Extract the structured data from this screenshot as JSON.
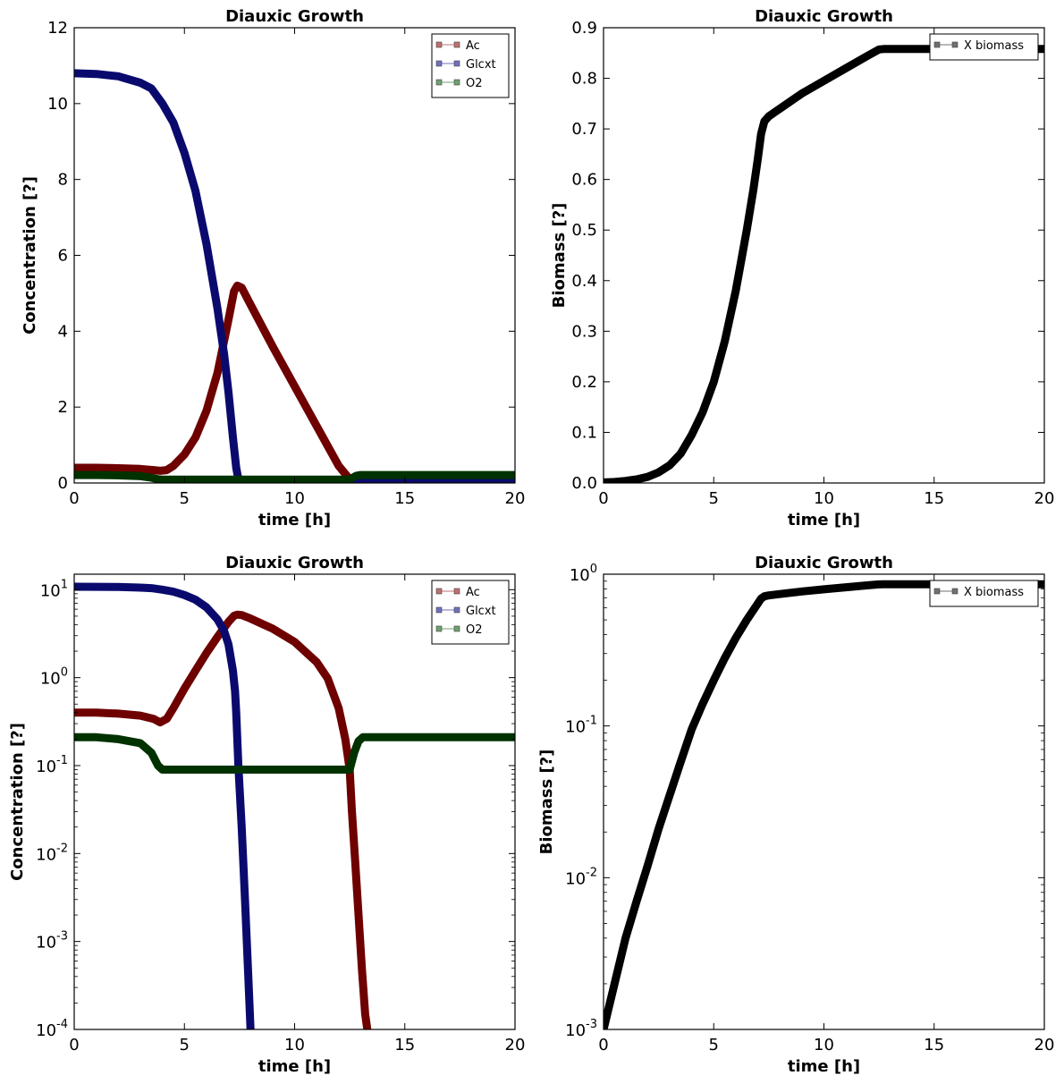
{
  "figure": {
    "panels": [
      {
        "id": "top-left-linear-concentration",
        "title": "Diauxic Growth",
        "xlabel": "time [h]",
        "ylabel": "Concentration [?]",
        "x_ticks": [
          "0",
          "5",
          "10",
          "15",
          "20"
        ],
        "y_ticks": [
          "0",
          "2",
          "4",
          "6",
          "8",
          "10",
          "12"
        ],
        "legend": [
          "Ac",
          "Glcxt",
          "O2"
        ]
      },
      {
        "id": "top-right-linear-biomass",
        "title": "Diauxic Growth",
        "xlabel": "time [h]",
        "ylabel": "Biomass [?]",
        "x_ticks": [
          "0",
          "5",
          "10",
          "15",
          "20"
        ],
        "y_ticks": [
          "0.0",
          "0.1",
          "0.2",
          "0.3",
          "0.4",
          "0.5",
          "0.6",
          "0.7",
          "0.8",
          "0.9"
        ],
        "legend": [
          "X biomass"
        ]
      },
      {
        "id": "bottom-left-log-concentration",
        "title": "Diauxic Growth",
        "xlabel": "time [h]",
        "ylabel": "Concentration [?]",
        "x_ticks": [
          "0",
          "5",
          "10",
          "15",
          "20"
        ],
        "y_tick_base": "10",
        "y_tick_exponents": [
          "-4",
          "-3",
          "-2",
          "-1",
          "0",
          "1"
        ],
        "legend": [
          "Ac",
          "Glcxt",
          "O2"
        ]
      },
      {
        "id": "bottom-right-log-biomass",
        "title": "Diauxic Growth",
        "xlabel": "time [h]",
        "ylabel": "Biomass [?]",
        "x_ticks": [
          "0",
          "5",
          "10",
          "15",
          "20"
        ],
        "y_tick_base": "10",
        "y_tick_exponents": [
          "-3",
          "-2",
          "-1",
          "0"
        ],
        "legend": [
          "X biomass"
        ]
      }
    ]
  },
  "colors": {
    "Ac": "#6e0000",
    "Glcxt": "#0a0a6e",
    "O2": "#003200",
    "X biomass": "#000000",
    "Ac_legend": "#c07070",
    "Glcxt_legend": "#7070c0",
    "O2_legend": "#70a070",
    "X_biomass_legend": "#707070"
  },
  "chart_data": [
    {
      "type": "line",
      "title": "Diauxic Growth",
      "xlabel": "time [h]",
      "ylabel": "Concentration [?]",
      "xlim": [
        0,
        20
      ],
      "ylim": [
        0,
        12
      ],
      "yscale": "linear",
      "grid": false,
      "legend_position": "top-right",
      "series": [
        {
          "name": "Ac",
          "x": [
            0,
            1,
            2,
            3,
            3.6,
            3.9,
            4.2,
            4.5,
            5,
            5.5,
            6,
            6.5,
            7,
            7.25,
            7.4,
            7.6,
            8,
            9,
            10,
            11,
            12,
            12.5,
            12.7,
            13,
            14,
            16,
            18,
            20
          ],
          "y": [
            0.4,
            0.4,
            0.39,
            0.37,
            0.34,
            0.32,
            0.34,
            0.45,
            0.75,
            1.2,
            1.9,
            2.9,
            4.3,
            5.05,
            5.2,
            5.15,
            4.7,
            3.6,
            2.55,
            1.5,
            0.45,
            0.1,
            0.0,
            0.0,
            0.0,
            0.0,
            0.0,
            0.0
          ]
        },
        {
          "name": "Glcxt",
          "x": [
            0,
            1,
            2,
            3,
            3.5,
            4,
            4.5,
            5,
            5.5,
            6,
            6.5,
            6.8,
            7,
            7.2,
            7.35,
            7.45,
            7.6,
            8,
            10,
            15,
            20
          ],
          "y": [
            10.8,
            10.78,
            10.72,
            10.55,
            10.4,
            10.0,
            9.5,
            8.7,
            7.7,
            6.3,
            4.6,
            3.4,
            2.4,
            1.2,
            0.4,
            0.1,
            0.0,
            0.0,
            0.0,
            0.0,
            0.0
          ]
        },
        {
          "name": "O2",
          "x": [
            0,
            1,
            2,
            3,
            3.5,
            3.8,
            4,
            5,
            8,
            10,
            12,
            12.5,
            12.8,
            13,
            14,
            16,
            18,
            20
          ],
          "y": [
            0.21,
            0.21,
            0.2,
            0.18,
            0.14,
            0.1,
            0.09,
            0.09,
            0.09,
            0.09,
            0.09,
            0.09,
            0.19,
            0.21,
            0.21,
            0.21,
            0.21,
            0.21
          ]
        }
      ]
    },
    {
      "type": "line",
      "title": "Diauxic Growth",
      "xlabel": "time [h]",
      "ylabel": "Biomass [?]",
      "xlim": [
        0,
        20
      ],
      "ylim": [
        0,
        0.9
      ],
      "yscale": "linear",
      "grid": false,
      "legend_position": "top-right",
      "series": [
        {
          "name": "X biomass",
          "x": [
            0,
            0.5,
            1,
            1.5,
            2,
            2.5,
            3,
            3.5,
            4,
            4.5,
            5,
            5.5,
            6,
            6.5,
            6.8,
            7,
            7.15,
            7.3,
            7.5,
            8,
            9,
            10,
            11,
            12,
            12.5,
            12.7,
            14,
            16,
            18,
            20
          ],
          "y": [
            0.001,
            0.002,
            0.004,
            0.007,
            0.012,
            0.021,
            0.035,
            0.058,
            0.095,
            0.14,
            0.2,
            0.28,
            0.38,
            0.5,
            0.58,
            0.64,
            0.69,
            0.715,
            0.725,
            0.74,
            0.77,
            0.795,
            0.82,
            0.845,
            0.857,
            0.858,
            0.858,
            0.858,
            0.858,
            0.858
          ]
        }
      ]
    },
    {
      "type": "line",
      "title": "Diauxic Growth",
      "xlabel": "time [h]",
      "ylabel": "Concentration [?]",
      "xlim": [
        0,
        20
      ],
      "ylim": [
        0.0001,
        15
      ],
      "yscale": "log",
      "grid": false,
      "legend_position": "top-right",
      "series": [
        {
          "name": "Ac",
          "x": [
            0,
            1,
            2,
            3,
            3.6,
            3.9,
            4.2,
            4.5,
            5,
            5.5,
            6,
            6.5,
            7,
            7.25,
            7.4,
            7.6,
            8,
            9,
            10,
            11,
            11.5,
            12,
            12.3,
            12.5,
            12.6,
            12.75,
            12.9,
            13.05,
            13.2,
            13.3
          ],
          "y": [
            0.4,
            0.4,
            0.39,
            0.37,
            0.34,
            0.31,
            0.34,
            0.45,
            0.75,
            1.2,
            1.9,
            2.9,
            4.3,
            5.05,
            5.2,
            5.15,
            4.7,
            3.6,
            2.55,
            1.5,
            0.98,
            0.45,
            0.2,
            0.09,
            0.03,
            0.008,
            0.002,
            0.0005,
            0.00015,
            0.0001
          ]
        },
        {
          "name": "Glcxt",
          "x": [
            0,
            1,
            2,
            3,
            3.5,
            4,
            4.5,
            5,
            5.5,
            6,
            6.5,
            6.8,
            7,
            7.2,
            7.3,
            7.35,
            7.45,
            7.6,
            7.75,
            7.9,
            8.0
          ],
          "y": [
            10.8,
            10.78,
            10.72,
            10.55,
            10.4,
            10.0,
            9.5,
            8.7,
            7.7,
            6.3,
            4.6,
            3.4,
            2.4,
            1.2,
            0.7,
            0.4,
            0.1,
            0.02,
            0.003,
            0.0004,
            0.0001
          ]
        },
        {
          "name": "O2",
          "x": [
            0,
            1,
            2,
            3,
            3.5,
            3.8,
            4,
            5,
            8,
            10,
            12,
            12.5,
            12.7,
            12.9,
            13.1,
            14,
            16,
            18,
            20
          ],
          "y": [
            0.21,
            0.21,
            0.2,
            0.18,
            0.14,
            0.1,
            0.09,
            0.09,
            0.09,
            0.09,
            0.09,
            0.09,
            0.14,
            0.19,
            0.21,
            0.21,
            0.21,
            0.21,
            0.21
          ]
        }
      ]
    },
    {
      "type": "line",
      "title": "Diauxic Growth",
      "xlabel": "time [h]",
      "ylabel": "Biomass [?]",
      "xlim": [
        0,
        20
      ],
      "ylim": [
        0.001,
        1
      ],
      "yscale": "log",
      "grid": false,
      "legend_position": "top-right",
      "series": [
        {
          "name": "X biomass",
          "x": [
            0,
            0.5,
            1,
            1.5,
            2,
            2.5,
            3,
            3.5,
            4,
            4.5,
            5,
            5.5,
            6,
            6.5,
            6.8,
            7,
            7.15,
            7.3,
            7.5,
            8,
            9,
            10,
            11,
            12,
            12.5,
            12.7,
            14,
            16,
            18,
            20
          ],
          "y": [
            0.001,
            0.002,
            0.004,
            0.007,
            0.012,
            0.021,
            0.035,
            0.058,
            0.095,
            0.14,
            0.2,
            0.28,
            0.38,
            0.5,
            0.58,
            0.64,
            0.69,
            0.715,
            0.725,
            0.74,
            0.77,
            0.795,
            0.82,
            0.845,
            0.857,
            0.858,
            0.858,
            0.858,
            0.858,
            0.858
          ]
        }
      ]
    }
  ]
}
